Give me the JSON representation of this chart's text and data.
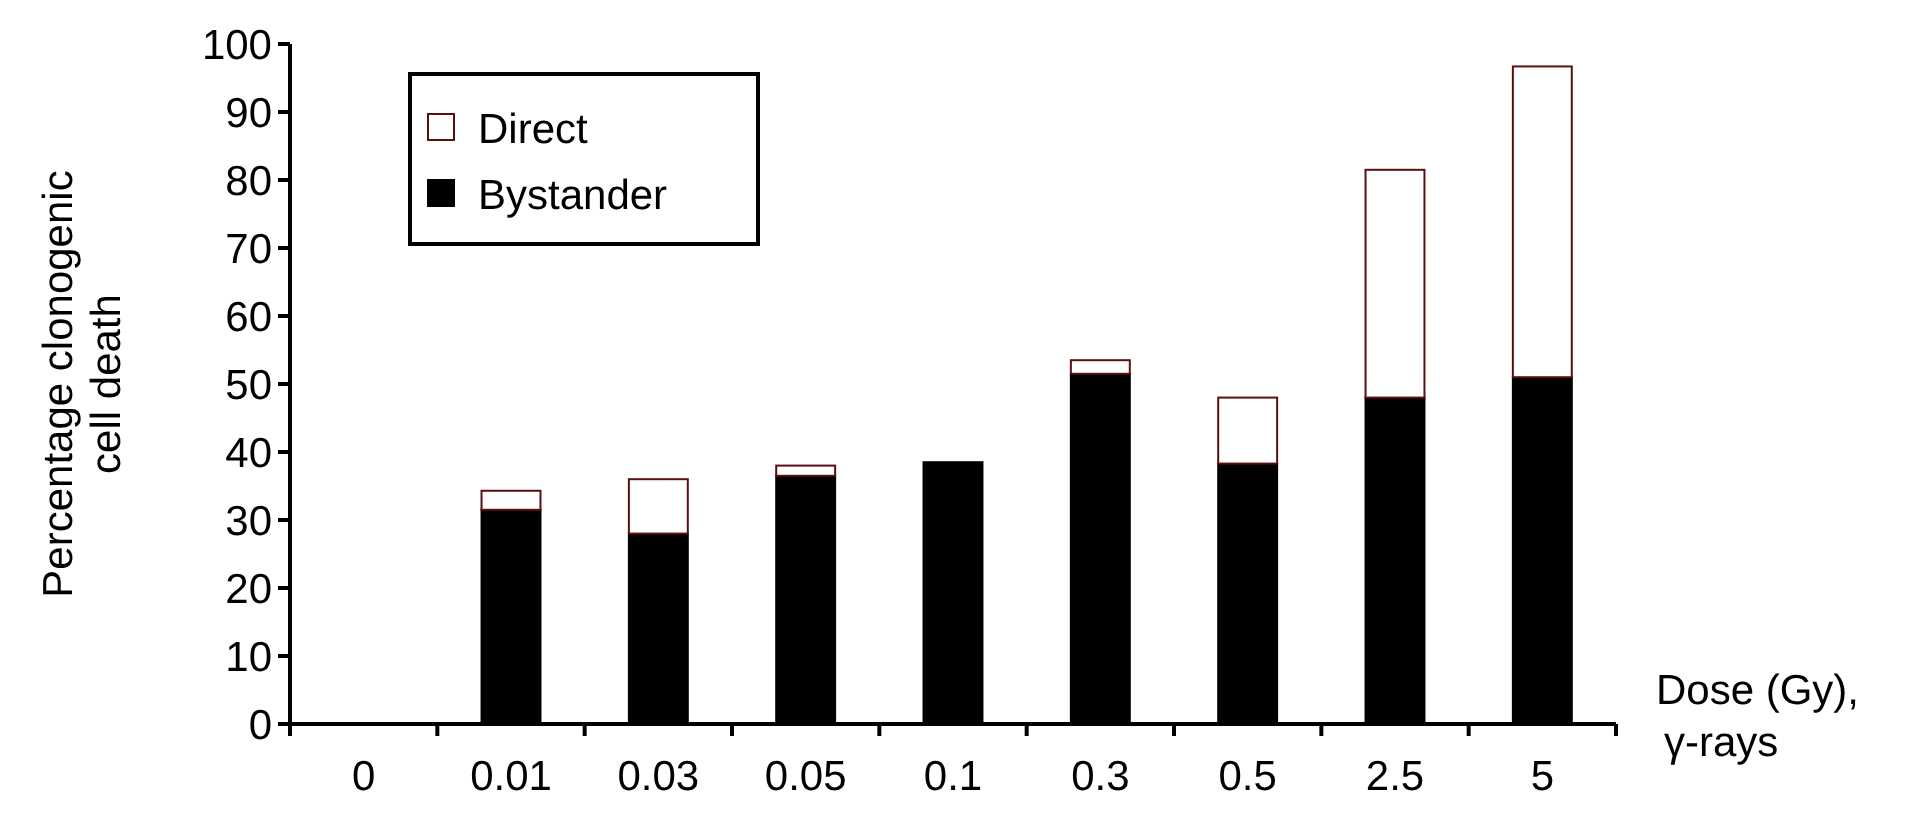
{
  "chart_data": {
    "type": "bar",
    "stacked": true,
    "xlabel": "Dose (Gy),\nγ-rays",
    "ylabel": "Percentage clonogenic\ncell death",
    "categories": [
      "0",
      "0.01",
      "0.03",
      "0.05",
      "0.1",
      "0.3",
      "0.5",
      "2.5",
      "5"
    ],
    "series": [
      {
        "name": "Bystander",
        "color": "#000000",
        "values": [
          0,
          31.5,
          28,
          36.5,
          38.5,
          51.5,
          38.3,
          48,
          51
        ]
      },
      {
        "name": "Direct",
        "color": "#ffffff",
        "values": [
          0,
          2.8,
          8,
          1.5,
          0,
          2,
          9.7,
          33.5,
          45.7
        ]
      }
    ],
    "ylim": [
      0,
      100
    ],
    "yticks": [
      0,
      10,
      20,
      30,
      40,
      50,
      60,
      70,
      80,
      90,
      100
    ],
    "grid": false,
    "legend": "top left"
  }
}
